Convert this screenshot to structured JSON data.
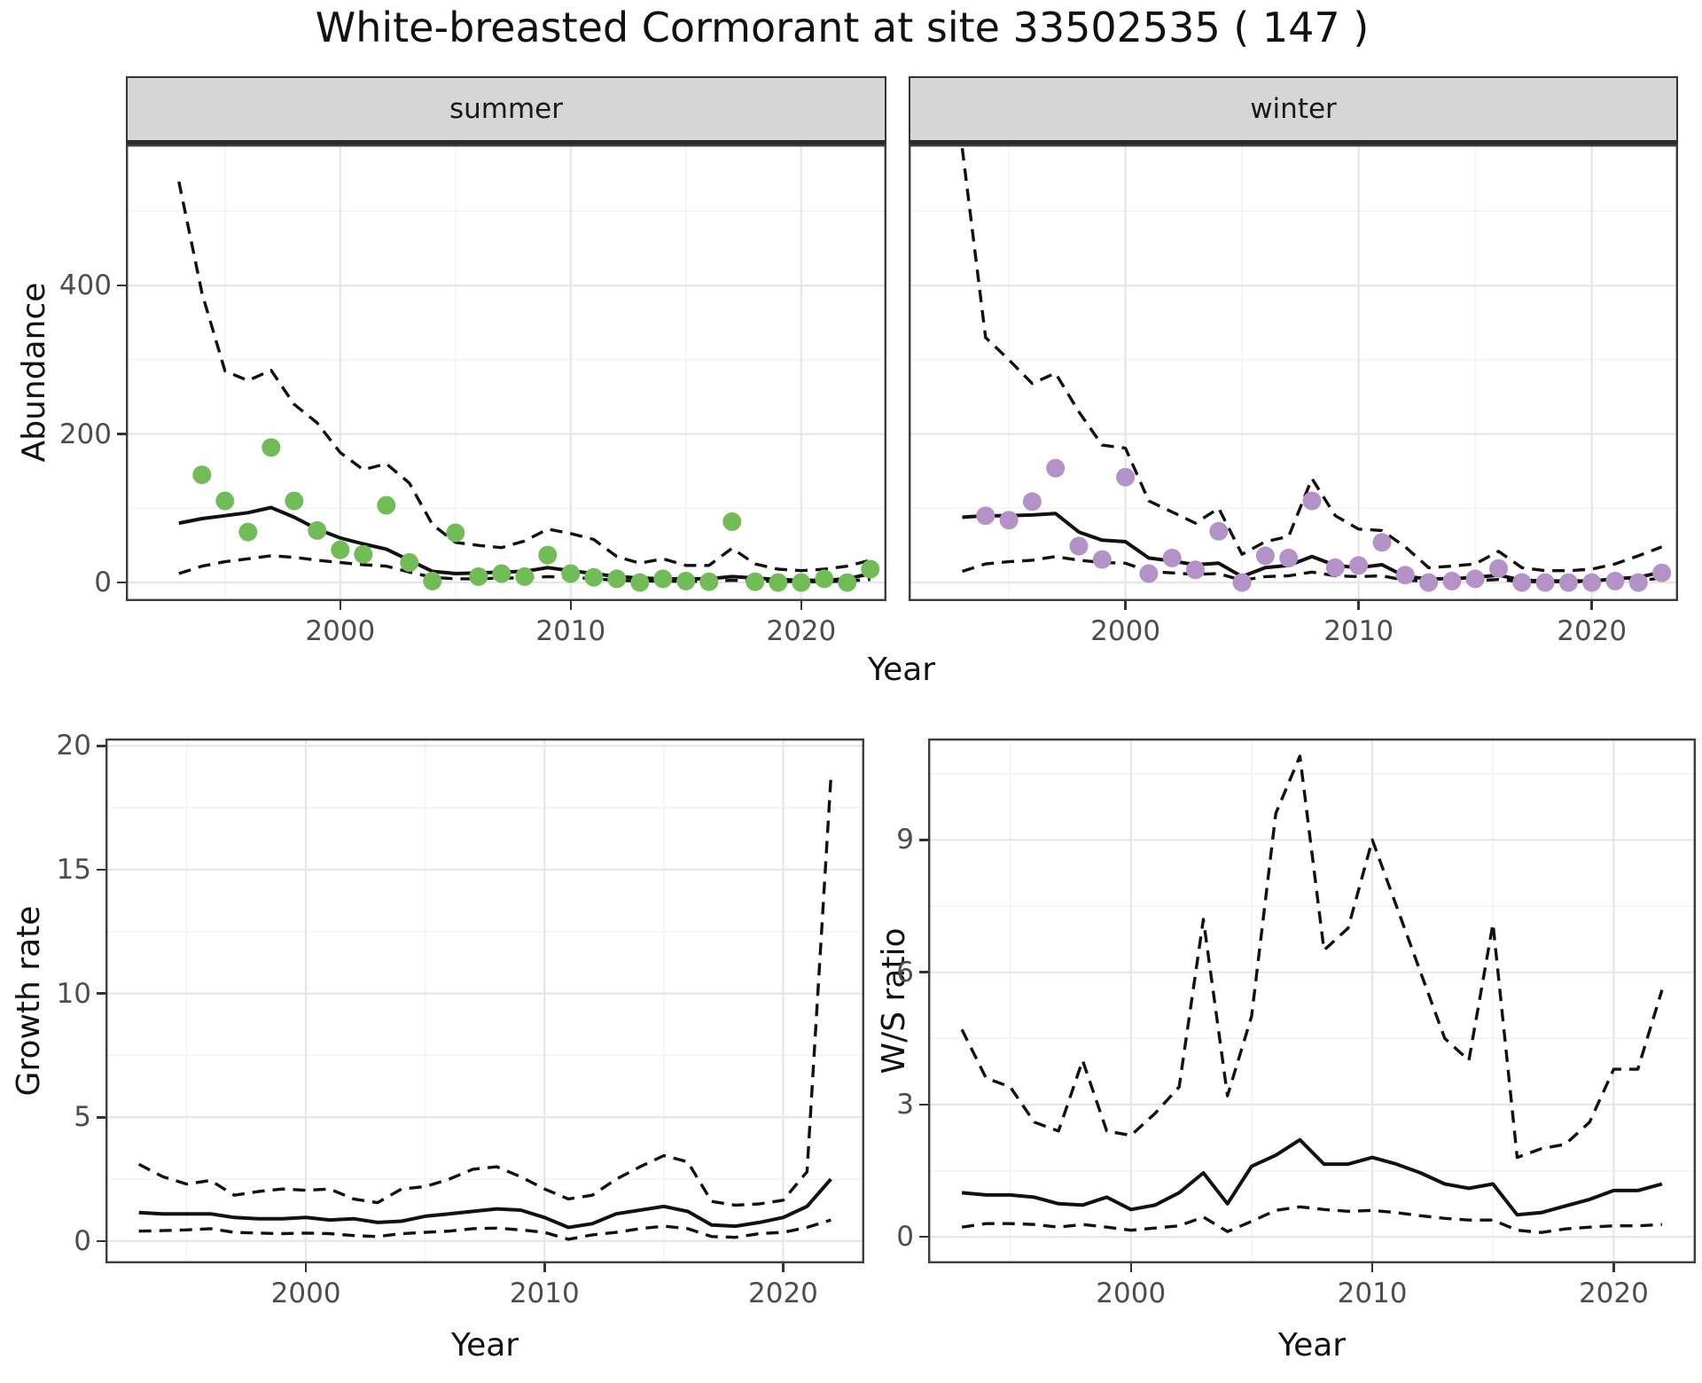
{
  "title": "White-breasted Cormorant at site 33502535 ( 147 )",
  "colors": {
    "summer_point": "#72BC57",
    "winter_point": "#B491C7",
    "line": "#111111",
    "strip_bg": "#D6D6D6",
    "grid_major": "#E6E6E6",
    "grid_minor": "#F3F3F3",
    "axis_text": "#4D4D4D"
  },
  "chart_data": [
    {
      "id": "abundance",
      "type": "line",
      "title": "",
      "xlabel": "Year",
      "ylabel": "Abundance",
      "xlim": [
        1990.7,
        2023.7
      ],
      "ylim": [
        -25,
        590
      ],
      "xticks": [
        2000,
        2010,
        2020
      ],
      "xticks_minor": [
        1995,
        2005,
        2015
      ],
      "yticks": [
        0,
        200,
        400
      ],
      "yticks_minor": [
        100,
        300,
        500
      ],
      "legend": "none",
      "grid": "on",
      "fit_years": [
        1993,
        1994,
        1995,
        1996,
        1997,
        1998,
        1999,
        2000,
        2001,
        2002,
        2003,
        2004,
        2005,
        2006,
        2007,
        2008,
        2009,
        2010,
        2011,
        2012,
        2013,
        2014,
        2015,
        2016,
        2017,
        2018,
        2019,
        2020,
        2021,
        2022,
        2023
      ],
      "facets": [
        {
          "label": "summer",
          "point_color": "#72BC57",
          "obs_years": [
            1994,
            1995,
            1996,
            1997,
            1998,
            1999,
            2000,
            2001,
            2002,
            2003,
            2004,
            2005,
            2006,
            2007,
            2008,
            2009,
            2010,
            2011,
            2012,
            2013,
            2014,
            2015,
            2016,
            2017,
            2018,
            2019,
            2020,
            2021,
            2022,
            2023
          ],
          "obs": [
            145,
            110,
            68,
            182,
            110,
            70,
            44,
            38,
            104,
            27,
            2,
            67,
            8,
            12,
            8,
            37,
            12,
            7,
            5,
            0,
            5,
            2,
            1,
            82,
            1,
            0,
            0,
            5,
            0,
            18
          ],
          "fit": [
            80,
            86,
            90,
            94,
            101,
            88,
            72,
            60,
            52,
            45,
            30,
            15,
            12,
            13,
            14,
            15,
            20,
            16,
            12,
            8,
            6,
            5,
            5,
            5,
            8,
            6,
            4,
            3,
            3,
            5,
            12
          ],
          "upper": [
            540,
            390,
            285,
            272,
            286,
            240,
            215,
            175,
            152,
            160,
            134,
            78,
            54,
            50,
            47,
            56,
            72,
            66,
            58,
            35,
            26,
            32,
            23,
            23,
            46,
            25,
            18,
            16,
            18,
            22,
            30
          ],
          "lower": [
            12,
            22,
            28,
            32,
            36,
            34,
            30,
            27,
            24,
            22,
            14,
            7,
            5,
            5,
            6,
            6,
            8,
            7,
            5,
            3,
            2,
            2,
            1.5,
            1.5,
            3,
            2,
            1.5,
            1,
            1,
            2,
            4
          ]
        },
        {
          "label": "winter",
          "point_color": "#B491C7",
          "obs_years": [
            1994,
            1995,
            1996,
            1997,
            1998,
            1999,
            2000,
            2001,
            2002,
            2003,
            2004,
            2005,
            2006,
            2007,
            2008,
            2009,
            2010,
            2011,
            2012,
            2013,
            2014,
            2015,
            2016,
            2017,
            2018,
            2019,
            2020,
            2021,
            2022,
            2023
          ],
          "obs": [
            90,
            84,
            109,
            154,
            49,
            31,
            142,
            12,
            33,
            17,
            69,
            0,
            36,
            33,
            110,
            20,
            23,
            54,
            10,
            0,
            2,
            5,
            19,
            0,
            0,
            0,
            0,
            2,
            0,
            13
          ],
          "fit": [
            88,
            90,
            90,
            91,
            93,
            68,
            57,
            55,
            33,
            29,
            24,
            26,
            8,
            20,
            23,
            35,
            23,
            20,
            24,
            8,
            5,
            5,
            7,
            10,
            3,
            2,
            2,
            2,
            5,
            7,
            14
          ],
          "upper": [
            585,
            330,
            300,
            268,
            282,
            230,
            185,
            181,
            110,
            95,
            80,
            100,
            38,
            55,
            62,
            140,
            90,
            72,
            70,
            48,
            20,
            22,
            25,
            42,
            20,
            16,
            16,
            18,
            25,
            36,
            48
          ],
          "lower": [
            15,
            25,
            28,
            30,
            35,
            30,
            27,
            26,
            15,
            13,
            11,
            12,
            3,
            8,
            9,
            14,
            9,
            8,
            9,
            3,
            2,
            2,
            2.5,
            4,
            1,
            1,
            1,
            1,
            2,
            2.5,
            6
          ]
        }
      ]
    },
    {
      "id": "growth_rate",
      "type": "line",
      "title": "",
      "xlabel": "Year",
      "ylabel": "Growth rate",
      "xlim": [
        1991.6,
        2023.4
      ],
      "ylim": [
        -0.9,
        20.3
      ],
      "xticks": [
        2000,
        2010,
        2020
      ],
      "xticks_minor": [
        1995,
        2005,
        2015
      ],
      "yticks": [
        0,
        5,
        10,
        15,
        20
      ],
      "yticks_minor": [
        2.5,
        7.5,
        12.5,
        17.5
      ],
      "legend": "none",
      "grid": "on",
      "years": [
        1993,
        1994,
        1995,
        1996,
        1997,
        1998,
        1999,
        2000,
        2001,
        2002,
        2003,
        2004,
        2005,
        2006,
        2007,
        2008,
        2009,
        2010,
        2011,
        2012,
        2013,
        2014,
        2015,
        2016,
        2017,
        2018,
        2019,
        2020,
        2021,
        2022
      ],
      "fit": [
        1.15,
        1.1,
        1.1,
        1.1,
        0.95,
        0.9,
        0.9,
        0.95,
        0.85,
        0.9,
        0.75,
        0.8,
        1.0,
        1.1,
        1.2,
        1.3,
        1.25,
        0.95,
        0.55,
        0.7,
        1.1,
        1.25,
        1.4,
        1.2,
        0.65,
        0.6,
        0.75,
        0.95,
        1.4,
        2.5
      ],
      "upper": [
        3.1,
        2.6,
        2.3,
        2.45,
        1.85,
        2.0,
        2.1,
        2.05,
        2.1,
        1.7,
        1.55,
        2.1,
        2.2,
        2.5,
        2.9,
        3.0,
        2.6,
        2.1,
        1.7,
        1.85,
        2.5,
        3.0,
        3.45,
        3.2,
        1.6,
        1.45,
        1.5,
        1.65,
        2.8,
        18.7
      ],
      "lower": [
        0.4,
        0.42,
        0.45,
        0.5,
        0.35,
        0.32,
        0.3,
        0.32,
        0.3,
        0.22,
        0.18,
        0.3,
        0.35,
        0.4,
        0.5,
        0.52,
        0.45,
        0.35,
        0.07,
        0.25,
        0.35,
        0.5,
        0.6,
        0.5,
        0.18,
        0.15,
        0.3,
        0.35,
        0.55,
        0.85
      ]
    },
    {
      "id": "ws_ratio",
      "type": "line",
      "title": "",
      "xlabel": "Year",
      "ylabel": "W/S ratio",
      "xlim": [
        1991.6,
        2023.4
      ],
      "ylim": [
        -0.6,
        11.3
      ],
      "xticks": [
        2000,
        2010,
        2020
      ],
      "xticks_minor": [
        1995,
        2005,
        2015
      ],
      "yticks": [
        0,
        3,
        6,
        9
      ],
      "yticks_minor": [
        1.5,
        4.5,
        7.5,
        10.5
      ],
      "legend": "none",
      "grid": "on",
      "years": [
        1993,
        1994,
        1995,
        1996,
        1997,
        1998,
        1999,
        2000,
        2001,
        2002,
        2003,
        2004,
        2005,
        2006,
        2007,
        2008,
        2009,
        2010,
        2011,
        2012,
        2013,
        2014,
        2015,
        2016,
        2017,
        2018,
        2019,
        2020,
        2021,
        2022
      ],
      "fit": [
        1.0,
        0.95,
        0.95,
        0.9,
        0.75,
        0.72,
        0.9,
        0.62,
        0.72,
        1.0,
        1.45,
        0.75,
        1.6,
        1.85,
        2.2,
        1.65,
        1.65,
        1.8,
        1.65,
        1.45,
        1.2,
        1.1,
        1.2,
        0.5,
        0.55,
        0.7,
        0.85,
        1.05,
        1.05,
        1.2
      ],
      "upper": [
        4.7,
        3.6,
        3.4,
        2.6,
        2.4,
        4.0,
        2.4,
        2.3,
        2.8,
        3.4,
        7.2,
        3.2,
        5.0,
        9.6,
        10.9,
        6.5,
        7.0,
        9.0,
        7.5,
        6.0,
        4.5,
        4.0,
        7.1,
        1.8,
        2.0,
        2.1,
        2.6,
        3.8,
        3.8,
        5.6
      ],
      "lower": [
        0.22,
        0.3,
        0.3,
        0.28,
        0.22,
        0.28,
        0.22,
        0.15,
        0.2,
        0.25,
        0.45,
        0.12,
        0.35,
        0.6,
        0.68,
        0.62,
        0.58,
        0.6,
        0.55,
        0.48,
        0.42,
        0.38,
        0.38,
        0.15,
        0.1,
        0.18,
        0.22,
        0.25,
        0.25,
        0.28
      ]
    }
  ]
}
